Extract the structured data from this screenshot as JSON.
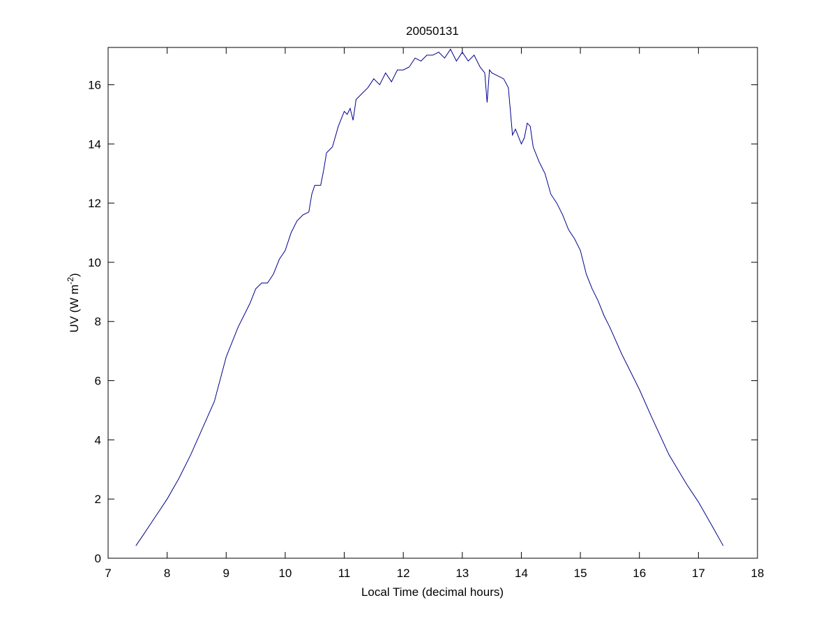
{
  "chart_data": {
    "type": "line",
    "title": "20050131",
    "xlabel": "Local Time (decimal hours)",
    "ylabel": [
      "UV (W m",
      "-2",
      ")"
    ],
    "xlim": [
      7,
      18
    ],
    "xticks": [
      7,
      8,
      9,
      10,
      11,
      12,
      13,
      14,
      15,
      16,
      17,
      18
    ],
    "ylim": [
      0,
      17.26
    ],
    "yticks": [
      0,
      2,
      4,
      6,
      8,
      10,
      12,
      14,
      16
    ],
    "grid": false,
    "series": [
      {
        "color": "#00008b",
        "x": [
          7.47,
          7.6,
          7.8,
          8.0,
          8.2,
          8.4,
          8.6,
          8.8,
          9.0,
          9.2,
          9.4,
          9.5,
          9.6,
          9.7,
          9.8,
          9.9,
          10.0,
          10.1,
          10.2,
          10.3,
          10.4,
          10.45,
          10.5,
          10.6,
          10.65,
          10.7,
          10.8,
          10.9,
          11.0,
          11.05,
          11.1,
          11.15,
          11.2,
          11.3,
          11.4,
          11.5,
          11.6,
          11.7,
          11.8,
          11.9,
          12.0,
          12.1,
          12.2,
          12.3,
          12.4,
          12.5,
          12.6,
          12.7,
          12.8,
          12.9,
          13.0,
          13.1,
          13.2,
          13.3,
          13.38,
          13.42,
          13.46,
          13.5,
          13.6,
          13.7,
          13.78,
          13.85,
          13.9,
          14.0,
          14.05,
          14.1,
          14.15,
          14.2,
          14.3,
          14.4,
          14.5,
          14.6,
          14.7,
          14.8,
          14.9,
          15.0,
          15.1,
          15.2,
          15.3,
          15.4,
          15.5,
          15.7,
          16.0,
          16.2,
          16.5,
          16.8,
          17.0,
          17.2,
          17.42
        ],
        "values": [
          0.42,
          0.8,
          1.4,
          2.0,
          2.7,
          3.5,
          4.4,
          5.3,
          6.8,
          7.8,
          8.6,
          9.1,
          9.3,
          9.3,
          9.6,
          10.1,
          10.4,
          11.0,
          11.4,
          11.6,
          11.7,
          12.3,
          12.6,
          12.6,
          13.1,
          13.7,
          13.9,
          14.6,
          15.1,
          15.0,
          15.2,
          14.8,
          15.5,
          15.7,
          15.9,
          16.2,
          16.0,
          16.4,
          16.1,
          16.5,
          16.5,
          16.6,
          16.9,
          16.8,
          17.0,
          17.0,
          17.1,
          16.9,
          17.2,
          16.8,
          17.1,
          16.8,
          17.0,
          16.6,
          16.4,
          15.4,
          16.5,
          16.4,
          16.3,
          16.2,
          15.9,
          14.3,
          14.5,
          14.0,
          14.2,
          14.7,
          14.6,
          13.9,
          13.4,
          13.0,
          12.3,
          12.0,
          11.6,
          11.1,
          10.8,
          10.4,
          9.6,
          9.1,
          8.7,
          8.2,
          7.8,
          6.9,
          5.7,
          4.8,
          3.5,
          2.5,
          1.9,
          1.2,
          0.42
        ]
      }
    ]
  }
}
